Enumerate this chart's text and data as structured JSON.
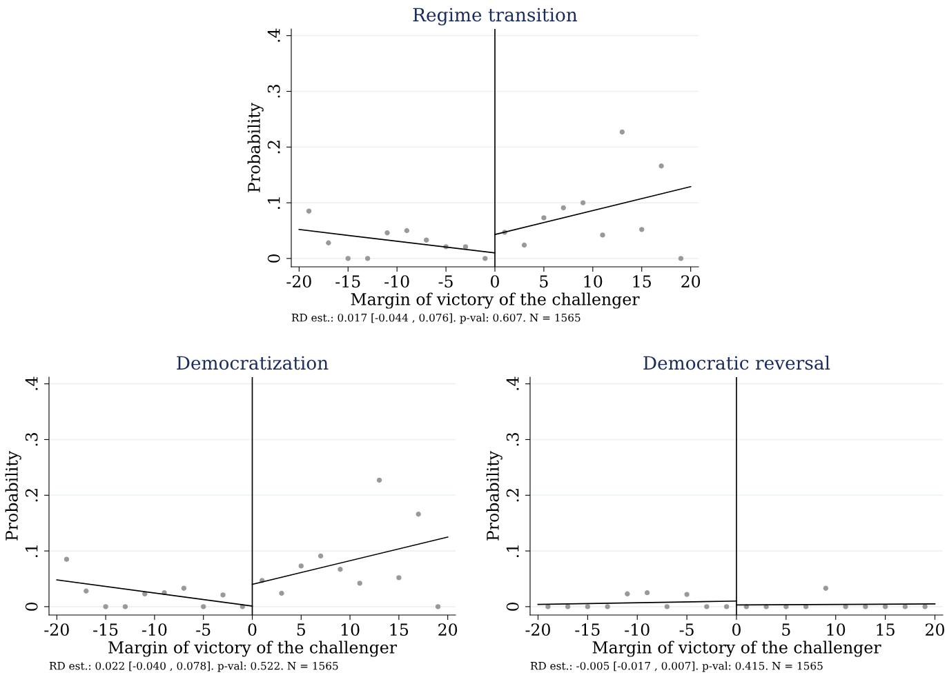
{
  "chart_data": [
    {
      "type": "scatter",
      "title": "Regime transition",
      "xlabel": "Margin of victory of the challenger",
      "ylabel": "Probability",
      "annotations": [
        "RD est.: 0.017 [-0.044 , 0.076]. p-val: 0.607. N = 1565"
      ],
      "xlim": [
        -20.8,
        20.8
      ],
      "ylim": [
        -0.015,
        0.412
      ],
      "xticks": [
        -20,
        -15,
        -10,
        -5,
        0,
        5,
        10,
        15,
        20
      ],
      "yticks": [
        {
          "value": 0,
          "label": "0"
        },
        {
          "value": 0.1,
          "label": ".1"
        },
        {
          "value": 0.2,
          "label": ".2"
        },
        {
          "value": 0.3,
          "label": ".3"
        },
        {
          "value": 0.4,
          "label": ".4"
        }
      ],
      "grid": "y",
      "ref_lines": [
        {
          "axis": "x",
          "value": 0,
          "color": "#000000"
        }
      ],
      "series": [
        {
          "color": "#999999",
          "marker": "circle",
          "x": [
            -19,
            -17,
            -15,
            -13,
            -11,
            -9,
            -7,
            -5,
            -3,
            -1,
            1,
            3,
            5,
            7,
            9,
            11,
            13,
            15,
            17,
            19
          ],
          "values": [
            0.085,
            0.028,
            0,
            0,
            0.046,
            0.05,
            0.033,
            0.021,
            0.021,
            0,
            0.047,
            0.024,
            0.073,
            0.091,
            0.1,
            0.042,
            0.227,
            0.052,
            0.166,
            0
          ]
        },
        {
          "type": "line",
          "color": "#000000",
          "x": [
            -20,
            0
          ],
          "values": [
            0.052,
            0.01
          ]
        },
        {
          "type": "line",
          "color": "#000000",
          "x": [
            0,
            20
          ],
          "values": [
            0.043,
            0.129
          ]
        }
      ]
    },
    {
      "type": "scatter",
      "title": "Democratization",
      "xlabel": "Margin of victory of the challenger",
      "ylabel": "Probability",
      "annotations": [
        "RD est.: 0.022 [-0.040 , 0.078]. p-val: 0.522. N = 1565"
      ],
      "xlim": [
        -20.8,
        20.8
      ],
      "ylim": [
        -0.015,
        0.412
      ],
      "xticks": [
        -20,
        -15,
        -10,
        -5,
        0,
        5,
        10,
        15,
        20
      ],
      "yticks": [
        {
          "value": 0,
          "label": "0"
        },
        {
          "value": 0.1,
          "label": ".1"
        },
        {
          "value": 0.2,
          "label": ".2"
        },
        {
          "value": 0.3,
          "label": ".3"
        },
        {
          "value": 0.4,
          "label": ".4"
        }
      ],
      "grid": "y",
      "ref_lines": [
        {
          "axis": "x",
          "value": 0,
          "color": "#000000"
        }
      ],
      "series": [
        {
          "color": "#999999",
          "marker": "circle",
          "x": [
            -19,
            -17,
            -15,
            -13,
            -11,
            -9,
            -7,
            -5,
            -3,
            -1,
            1,
            3,
            5,
            7,
            9,
            11,
            13,
            15,
            17,
            19
          ],
          "values": [
            0.085,
            0.028,
            0,
            0,
            0.023,
            0.025,
            0.033,
            0,
            0.021,
            0,
            0.047,
            0.024,
            0.073,
            0.091,
            0.067,
            0.042,
            0.227,
            0.052,
            0.166,
            0
          ]
        },
        {
          "type": "line",
          "color": "#000000",
          "x": [
            -20,
            0
          ],
          "values": [
            0.048,
            0.001
          ]
        },
        {
          "type": "line",
          "color": "#000000",
          "x": [
            0,
            20
          ],
          "values": [
            0.04,
            0.125
          ]
        }
      ]
    },
    {
      "type": "scatter",
      "title": "Democratic reversal",
      "xlabel": "Margin of victory of the challenger",
      "ylabel": "Probability",
      "annotations": [
        "RD est.: -0.005 [-0.017 , 0.007]. p-val: 0.415. N = 1565"
      ],
      "xlim": [
        -20.8,
        20.8
      ],
      "ylim": [
        -0.015,
        0.412
      ],
      "xticks": [
        -20,
        -15,
        -10,
        -5,
        0,
        5,
        10,
        15,
        20
      ],
      "yticks": [
        {
          "value": 0,
          "label": "0"
        },
        {
          "value": 0.1,
          "label": ".1"
        },
        {
          "value": 0.2,
          "label": ".2"
        },
        {
          "value": 0.3,
          "label": ".3"
        },
        {
          "value": 0.4,
          "label": ".4"
        }
      ],
      "grid": "y",
      "ref_lines": [
        {
          "axis": "x",
          "value": 0,
          "color": "#000000"
        }
      ],
      "series": [
        {
          "color": "#999999",
          "marker": "circle",
          "x": [
            -19,
            -17,
            -15,
            -13,
            -11,
            -9,
            -7,
            -5,
            -3,
            -1,
            1,
            3,
            5,
            7,
            9,
            11,
            13,
            15,
            17,
            19
          ],
          "values": [
            0,
            0,
            0,
            0,
            0.023,
            0.025,
            0,
            0.022,
            0,
            0,
            0,
            0,
            0,
            0,
            0.033,
            0,
            0,
            0,
            0,
            0
          ]
        },
        {
          "type": "line",
          "color": "#000000",
          "x": [
            -20,
            0
          ],
          "values": [
            0.004,
            0.01
          ]
        },
        {
          "type": "line",
          "color": "#000000",
          "x": [
            0,
            20
          ],
          "values": [
            0.003,
            0.005
          ]
        }
      ]
    }
  ]
}
